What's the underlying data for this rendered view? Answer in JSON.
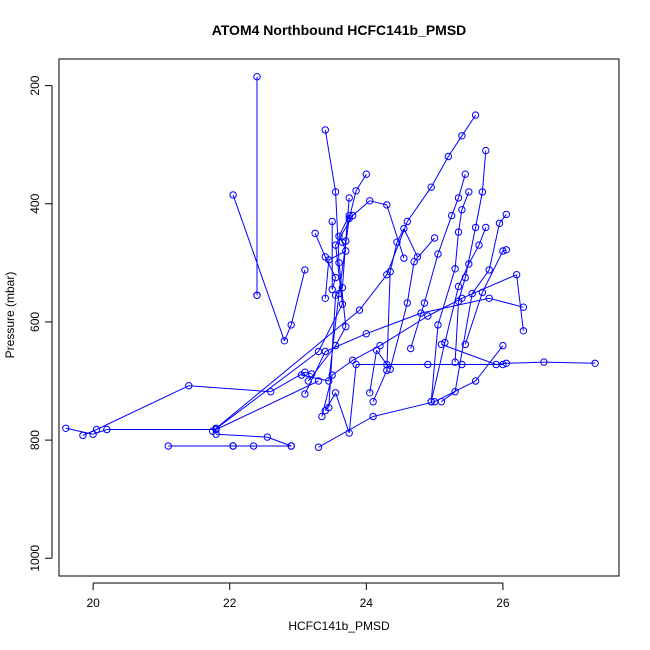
{
  "chart_data": {
    "type": "line",
    "title": "ATOM4 Northbound HCFC141b_PMSD",
    "xlabel": "HCFC141b_PMSD",
    "ylabel": "Pressure (mbar)",
    "xlim": [
      19.5,
      27.7
    ],
    "ylim": [
      1030,
      155
    ],
    "y_reversed": true,
    "xticks": [
      20,
      22,
      24,
      26
    ],
    "yticks": [
      200,
      400,
      600,
      800,
      1000
    ],
    "grid": false,
    "series_color": "#0000ff",
    "marker": "open-circle",
    "series": [
      {
        "x": [
          22.4,
          22.4,
          22.4
        ],
        "y": [
          185,
          555,
          555
        ]
      },
      {
        "x": [
          22.05,
          22.8,
          22.9,
          23.1
        ],
        "y": [
          385,
          632,
          605,
          512
        ]
      },
      {
        "x": [
          21.75,
          23.3,
          23.65,
          23.55,
          23.8,
          24.05,
          24.3,
          24.55
        ],
        "y": [
          785,
          650,
          570,
          470,
          420,
          395,
          402,
          492
        ]
      },
      {
        "x": [
          21.8,
          23.9,
          24.3,
          24.6,
          24.95,
          25.2,
          25.4,
          25.6
        ],
        "y": [
          780,
          580,
          520,
          430,
          372,
          320,
          285,
          250
        ]
      },
      {
        "x": [
          22.05,
          22.35,
          22.9
        ],
        "y": [
          810,
          810,
          810
        ]
      },
      {
        "x": [
          21.1,
          22.05,
          22.9,
          22.55,
          21.8
        ],
        "y": [
          810,
          810,
          810,
          795,
          790
        ]
      },
      {
        "x": [
          19.6,
          20.0,
          20.2,
          21.8,
          23.3
        ],
        "y": [
          780,
          790,
          782,
          782,
          700
        ]
      },
      {
        "x": [
          19.85,
          20.05,
          21.4,
          22.6,
          23.1,
          23.2
        ],
        "y": [
          792,
          782,
          708,
          718,
          685,
          688
        ]
      },
      {
        "x": [
          23.1,
          23.4,
          24.0,
          24.8,
          25.8,
          26.3
        ],
        "y": [
          722,
          650,
          620,
          585,
          560,
          575
        ]
      },
      {
        "x": [
          23.3,
          24.1,
          25.0,
          25.6,
          26.0
        ],
        "y": [
          812,
          760,
          735,
          700,
          640
        ]
      },
      {
        "x": [
          23.35,
          23.5,
          23.8,
          24.2,
          24.9,
          25.4,
          26.2,
          26.3
        ],
        "y": [
          760,
          690,
          665,
          640,
          590,
          560,
          520,
          615
        ]
      },
      {
        "x": [
          23.4,
          23.55,
          23.75,
          23.85,
          24.3,
          24.9,
          25.4,
          26.0
        ],
        "y": [
          750,
          720,
          788,
          672,
          672,
          672,
          672,
          672
        ]
      },
      {
        "x": [
          25.1,
          25.9,
          26.05,
          26.6,
          27.35
        ],
        "y": [
          638,
          672,
          670,
          668,
          670
        ]
      },
      {
        "x": [
          23.4,
          23.45,
          23.7,
          23.65,
          23.6,
          23.75
        ],
        "y": [
          560,
          495,
          480,
          465,
          455,
          420
        ]
      },
      {
        "x": [
          23.25,
          23.4,
          23.55,
          23.5,
          23.5
        ],
        "y": [
          450,
          490,
          525,
          545,
          430
        ]
      },
      {
        "x": [
          23.45,
          23.55,
          23.65,
          23.7,
          23.75
        ],
        "y": [
          745,
          555,
          542,
          463,
          390
        ]
      },
      {
        "x": [
          24.1,
          24.3,
          24.35,
          24.45,
          24.55,
          24.75
        ],
        "y": [
          735,
          682,
          515,
          465,
          442,
          490
        ]
      },
      {
        "x": [
          24.05,
          24.15,
          24.35,
          24.6,
          24.7,
          25.0
        ],
        "y": [
          720,
          648,
          680,
          568,
          498,
          458
        ]
      },
      {
        "x": [
          24.65,
          24.85,
          25.05,
          25.25,
          25.35,
          25.45
        ],
        "y": [
          645,
          568,
          485,
          420,
          390,
          350
        ]
      },
      {
        "x": [
          24.95,
          25.05,
          25.3,
          25.35,
          25.4,
          25.5
        ],
        "y": [
          735,
          605,
          510,
          448,
          410,
          380
        ]
      },
      {
        "x": [
          24.95,
          25.15,
          25.35,
          25.5,
          25.65,
          25.75
        ],
        "y": [
          735,
          635,
          540,
          502,
          470,
          440
        ]
      },
      {
        "x": [
          25.3,
          25.35,
          25.45,
          25.6,
          25.7,
          25.75
        ],
        "y": [
          668,
          565,
          525,
          440,
          380,
          310
        ]
      },
      {
        "x": [
          25.1,
          25.3,
          25.55,
          25.8,
          25.95,
          26.05
        ],
        "y": [
          735,
          718,
          552,
          512,
          433,
          418
        ]
      },
      {
        "x": [
          25.45,
          25.7,
          26.0,
          26.05
        ],
        "y": [
          638,
          550,
          480,
          478
        ]
      },
      {
        "x": [
          23.05,
          23.45,
          23.6,
          23.75,
          23.85,
          24.0
        ],
        "y": [
          690,
          700,
          552,
          425,
          378,
          350
        ]
      },
      {
        "x": [
          23.15,
          23.55,
          23.7,
          23.6,
          23.55,
          23.4
        ],
        "y": [
          700,
          640,
          608,
          500,
          380,
          275
        ]
      }
    ]
  }
}
